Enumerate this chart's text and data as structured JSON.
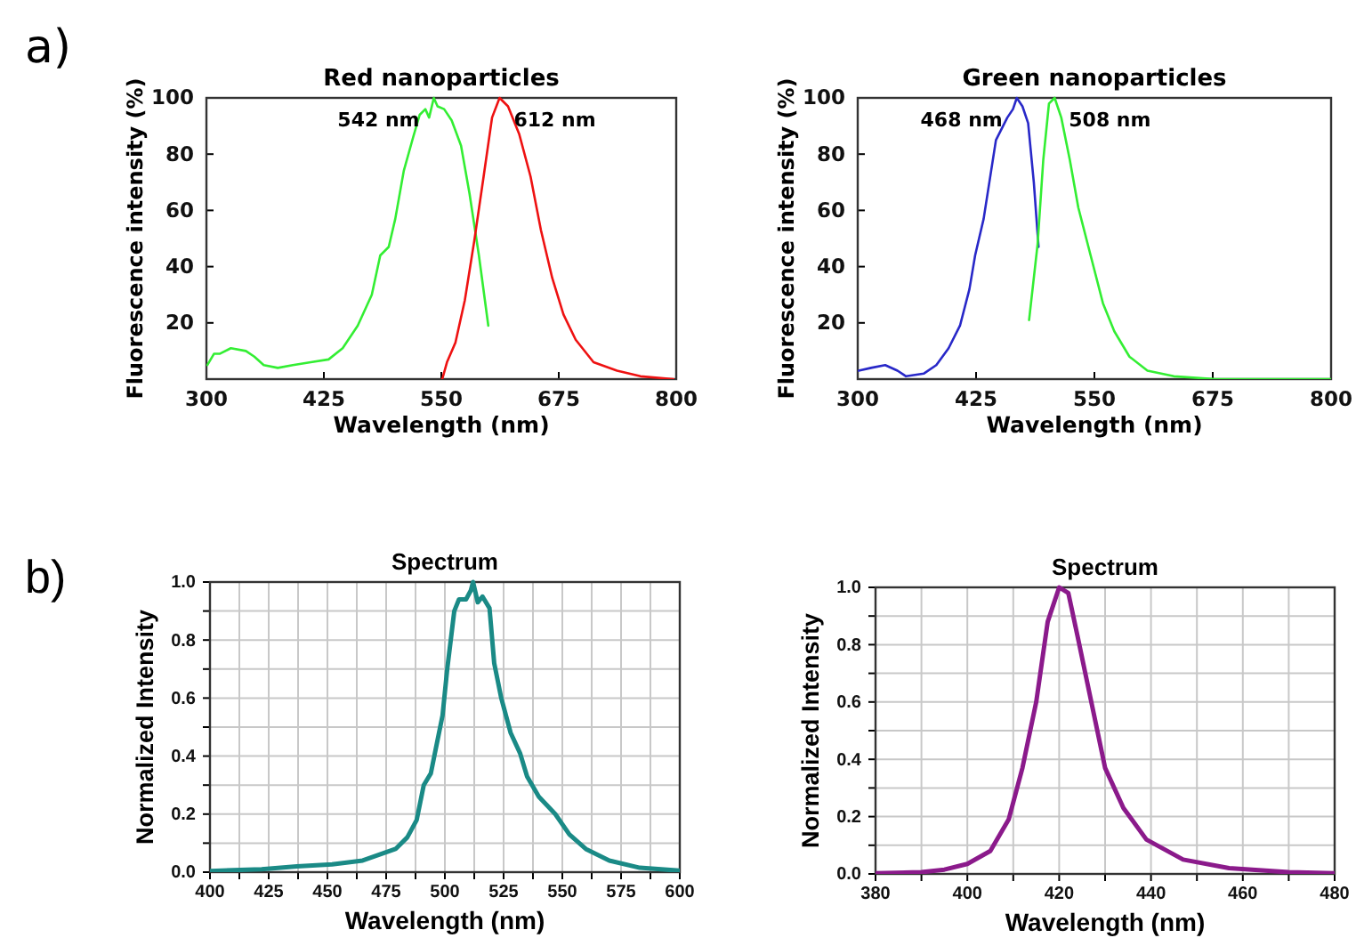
{
  "chart_data": [
    {
      "type": "line",
      "title": "Red nanoparticles",
      "xlabel": "Wavelength (nm)",
      "ylabel": "Fluorescence intensity (%)",
      "xlim": [
        300,
        800
      ],
      "xticks": [
        300,
        425,
        550,
        675,
        800
      ],
      "ylim": [
        0,
        100
      ],
      "yticks": [
        20,
        40,
        60,
        80,
        100
      ],
      "grid": false,
      "annotations": [
        "a)",
        {
          "text": "542 nm",
          "x": 542,
          "y": 100
        },
        {
          "text": "612 nm",
          "x": 612,
          "y": 100
        }
      ],
      "series": [
        {
          "color": "#33ee33",
          "x": [
            301,
            308,
            314,
            326,
            342,
            351,
            361,
            376,
            392,
            411,
            430,
            445,
            461,
            476,
            485,
            494,
            501,
            510,
            520,
            527,
            533,
            537,
            542,
            546,
            553,
            561,
            571,
            580,
            590,
            600
          ],
          "values": [
            5,
            9,
            9,
            11,
            10,
            8,
            5,
            4,
            5,
            6,
            7,
            11,
            19,
            30,
            44,
            47,
            57,
            74,
            86,
            94,
            96,
            93,
            100,
            97,
            96,
            92,
            83,
            66,
            44,
            19
          ]
        },
        {
          "color": "#ee1111",
          "x": [
            551,
            556,
            565,
            575,
            585,
            595,
            604,
            612,
            621,
            633,
            645,
            656,
            668,
            680,
            693,
            712,
            737,
            762,
            797
          ],
          "values": [
            0,
            6,
            13,
            28,
            49,
            72,
            93,
            100,
            97,
            87,
            72,
            53,
            36,
            23,
            14,
            6,
            3,
            1,
            0
          ]
        }
      ]
    },
    {
      "type": "line",
      "title": "Green nanoparticles",
      "xlabel": "Wavelength (nm)",
      "ylabel": "Fluorescence intensity (%)",
      "xlim": [
        300,
        800
      ],
      "xticks": [
        300,
        425,
        550,
        675,
        800
      ],
      "ylim": [
        0,
        100
      ],
      "yticks": [
        20,
        40,
        60,
        80,
        100
      ],
      "grid": false,
      "annotations": [
        {
          "text": "468 nm",
          "x": 468,
          "y": 100
        },
        {
          "text": "508 nm",
          "x": 508,
          "y": 100
        }
      ],
      "series": [
        {
          "color": "#2828c8",
          "x": [
            301,
            314,
            329,
            342,
            351,
            370,
            383,
            396,
            408,
            418,
            424,
            433,
            446,
            458,
            464,
            468,
            474,
            480,
            486,
            491
          ],
          "values": [
            3,
            4,
            5,
            3,
            1,
            2,
            5,
            11,
            19,
            32,
            44,
            57,
            85,
            93,
            96,
            100,
            97,
            91,
            70,
            47
          ]
        },
        {
          "color": "#33ee33",
          "x": [
            481,
            490,
            496,
            502,
            508,
            515,
            524,
            533,
            546,
            559,
            571,
            587,
            606,
            634,
            678,
            800
          ],
          "values": [
            21,
            48,
            78,
            98,
            100,
            93,
            78,
            61,
            44,
            27,
            17,
            8,
            3,
            1,
            0,
            0
          ]
        }
      ]
    },
    {
      "type": "line",
      "title": "Spectrum",
      "xlabel": "Wavelength (nm)",
      "ylabel": "Normalized Intensity",
      "xlim": [
        400,
        600
      ],
      "xticks": [
        400,
        {
          "value": 412.5,
          "label": null
        },
        425,
        {
          "value": 437.5,
          "label": null
        },
        450,
        {
          "value": 462.5,
          "label": null
        },
        475,
        {
          "value": 487.5,
          "label": null
        },
        500,
        {
          "value": 512.5,
          "label": null
        },
        525,
        {
          "value": 537.5,
          "label": null
        },
        550,
        {
          "value": 562.5,
          "label": null
        },
        575,
        {
          "value": 587.5,
          "label": null
        },
        600
      ],
      "ylim": [
        0,
        1
      ],
      "yticks": [
        {
          "value": 0,
          "label": "0.0"
        },
        {
          "value": 0.1,
          "label": null
        },
        0.2,
        {
          "value": 0.3,
          "label": null
        },
        0.4,
        {
          "value": 0.5,
          "label": null
        },
        0.6,
        {
          "value": 0.7,
          "label": null
        },
        0.8,
        {
          "value": 0.9,
          "label": null
        },
        {
          "value": 1,
          "label": "1.0"
        }
      ],
      "grid": true,
      "annotations": [
        "b)"
      ],
      "series": [
        {
          "color": "#1a8a86",
          "x": [
            400,
            422,
            437,
            452,
            465,
            472,
            479,
            484,
            488,
            491,
            494,
            496,
            499,
            501,
            504,
            506,
            509,
            511,
            512,
            514,
            516,
            519,
            521,
            524,
            528,
            532,
            535,
            540,
            547,
            553,
            560,
            570,
            583,
            600
          ],
          "values": [
            0.004,
            0.01,
            0.02,
            0.027,
            0.04,
            0.06,
            0.08,
            0.12,
            0.18,
            0.3,
            0.34,
            0.42,
            0.54,
            0.7,
            0.9,
            0.94,
            0.94,
            0.97,
            1.0,
            0.93,
            0.95,
            0.91,
            0.72,
            0.6,
            0.48,
            0.41,
            0.33,
            0.26,
            0.2,
            0.13,
            0.08,
            0.04,
            0.015,
            0.005
          ]
        }
      ]
    },
    {
      "type": "line",
      "title": "Spectrum",
      "xlabel": "Wavelength (nm)",
      "ylabel": "Normalized Intensity",
      "xlim": [
        380,
        480
      ],
      "xticks": [
        380,
        {
          "value": 390,
          "label": null
        },
        400,
        {
          "value": 410,
          "label": null
        },
        420,
        {
          "value": 430,
          "label": null
        },
        440,
        {
          "value": 450,
          "label": null
        },
        460,
        {
          "value": 470,
          "label": null
        },
        480
      ],
      "ylim": [
        0,
        1
      ],
      "yticks": [
        {
          "value": 0,
          "label": "0.0"
        },
        {
          "value": 0.1,
          "label": null
        },
        0.2,
        {
          "value": 0.3,
          "label": null
        },
        0.4,
        {
          "value": 0.5,
          "label": null
        },
        0.6,
        {
          "value": 0.7,
          "label": null
        },
        0.8,
        {
          "value": 0.9,
          "label": null
        },
        {
          "value": 1,
          "label": "1.0"
        }
      ],
      "grid": true,
      "series": [
        {
          "color": "#8b1a8b",
          "x": [
            380,
            390,
            395,
            400,
            405,
            409,
            412,
            415,
            417.5,
            420,
            422,
            424,
            427,
            430,
            434,
            439,
            447,
            457,
            470,
            480
          ],
          "values": [
            0.002,
            0.006,
            0.015,
            0.035,
            0.08,
            0.19,
            0.37,
            0.6,
            0.88,
            1.0,
            0.98,
            0.83,
            0.6,
            0.37,
            0.23,
            0.12,
            0.05,
            0.02,
            0.006,
            0.002
          ]
        }
      ]
    }
  ]
}
